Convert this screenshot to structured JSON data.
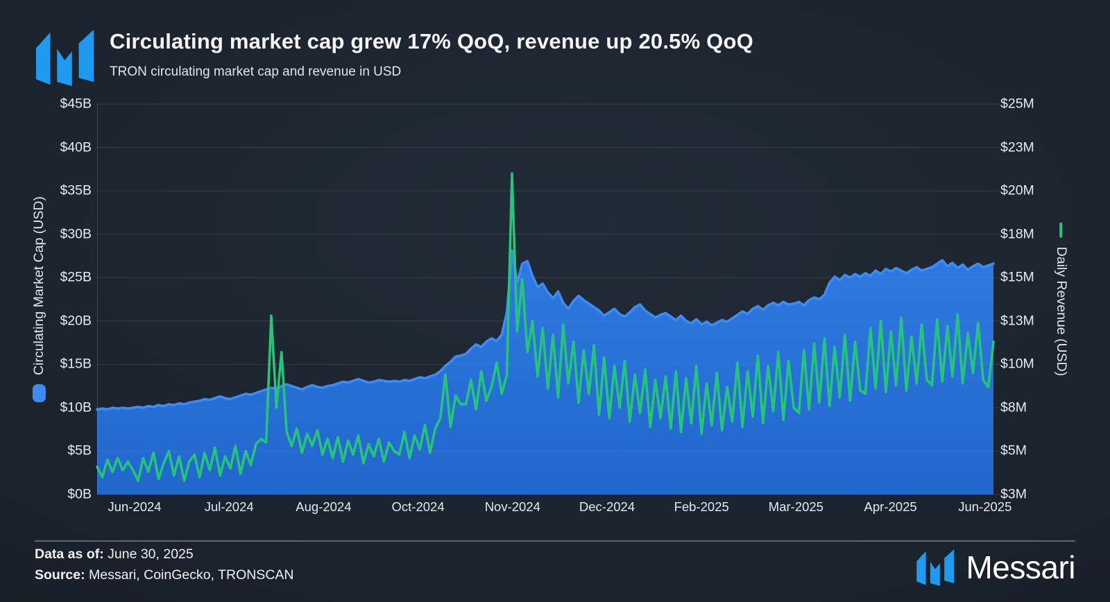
{
  "header": {
    "title": "Circulating market cap grew 17% QoQ, revenue up 20.5% QoQ",
    "subtitle": "TRON circulating market cap and revenue in USD"
  },
  "brand": {
    "logo_color": "#1E9BF0",
    "wordmark": "Messari"
  },
  "footer": {
    "data_as_of_label": "Data as of:",
    "data_as_of_value": "June 30, 2025",
    "source_label": "Source:",
    "source_value": "Messari, CoinGecko, TRONSCAN"
  },
  "chart_data": {
    "type": "area",
    "title": "Circulating market cap grew 17% QoQ, revenue up 20.5% QoQ",
    "subtitle": "TRON circulating market cap and revenue in USD",
    "grid": true,
    "legend_position": "axis-titles",
    "x_labels": [
      "Jun-2024",
      "Jul-2024",
      "Aug-2024",
      "Oct-2024",
      "Nov-2024",
      "Dec-2024",
      "Feb-2025",
      "Mar-2025",
      "Apr-2025",
      "Jun-2025"
    ],
    "x_range": "mid-May 2024 to June 30, 2025 (daily)",
    "left_axis": {
      "label": "Circulating Market Cap (USD)",
      "unit": "$B",
      "min": 0,
      "max": 45,
      "ticks": [
        "$45B",
        "$40B",
        "$35B",
        "$30B",
        "$25B",
        "$20B",
        "$15B",
        "$10B",
        "$5B",
        "$0B"
      ]
    },
    "right_axis": {
      "label": "Daily Revenue (USD)",
      "unit": "$M",
      "min": 3,
      "max": 25.5,
      "ticks": [
        "$25M",
        "$23M",
        "$20M",
        "$18M",
        "$15M",
        "$13M",
        "$10M",
        "$8M",
        "$5M",
        "$3M"
      ]
    },
    "series": [
      {
        "name": "Circulating Market Cap (USD)",
        "type": "area",
        "axis": "left",
        "fill_top": "#2E7AE2",
        "fill_bottom": "#2166CC",
        "stroke": "#3E8BF2",
        "values": [
          9.8,
          9.9,
          9.8,
          10.0,
          9.9,
          10.0,
          9.9,
          10.0,
          10.1,
          10.0,
          10.2,
          10.1,
          10.3,
          10.2,
          10.4,
          10.3,
          10.5,
          10.4,
          10.6,
          10.7,
          10.8,
          11.0,
          10.9,
          11.1,
          11.3,
          11.1,
          11.0,
          11.2,
          11.4,
          11.6,
          11.5,
          11.7,
          11.9,
          12.1,
          12.3,
          12.2,
          12.5,
          12.7,
          12.5,
          12.3,
          12.1,
          12.4,
          12.6,
          12.4,
          12.3,
          12.5,
          12.6,
          12.8,
          13.0,
          12.9,
          13.1,
          13.3,
          13.1,
          12.9,
          13.0,
          13.2,
          13.1,
          13.0,
          13.1,
          13.0,
          13.2,
          13.1,
          13.3,
          13.5,
          13.4,
          13.6,
          13.8,
          14.2,
          14.8,
          15.3,
          15.9,
          16.0,
          16.2,
          16.8,
          17.3,
          17.0,
          17.6,
          18.0,
          17.7,
          18.4,
          21.0,
          28.1,
          24.4,
          26.6,
          26.9,
          25.2,
          23.9,
          24.3,
          23.3,
          22.6,
          23.4,
          22.1,
          21.4,
          22.3,
          22.9,
          22.4,
          22.0,
          21.6,
          21.2,
          20.6,
          21.0,
          21.4,
          20.8,
          20.5,
          21.0,
          21.6,
          21.9,
          21.2,
          20.8,
          20.4,
          20.7,
          20.9,
          20.5,
          20.1,
          20.6,
          20.0,
          19.7,
          20.2,
          19.6,
          19.9,
          19.5,
          19.8,
          20.1,
          19.9,
          20.3,
          20.7,
          21.1,
          20.8,
          21.4,
          21.7,
          21.3,
          21.8,
          22.1,
          21.8,
          22.2,
          21.9,
          22.0,
          22.2,
          21.8,
          22.4,
          22.7,
          22.5,
          23.0,
          24.4,
          25.1,
          24.7,
          25.3,
          25.0,
          25.4,
          25.1,
          25.5,
          25.2,
          25.8,
          25.4,
          26.0,
          25.7,
          26.1,
          25.8,
          25.5,
          25.9,
          26.2,
          25.8,
          26.0,
          26.2,
          26.6,
          27.0,
          26.3,
          26.7,
          26.1,
          26.5,
          25.9,
          26.3,
          26.6,
          26.2,
          26.4,
          26.6
        ]
      },
      {
        "name": "Daily Revenue (USD)",
        "type": "line",
        "axis": "right",
        "stroke": "#25C479",
        "values": [
          4.6,
          4.0,
          5.0,
          4.3,
          5.1,
          4.4,
          4.9,
          4.4,
          3.8,
          5.1,
          4.3,
          5.4,
          3.9,
          4.8,
          5.5,
          4.1,
          5.2,
          3.8,
          4.9,
          5.3,
          4.0,
          5.4,
          4.4,
          5.7,
          4.1,
          5.2,
          4.5,
          5.8,
          4.2,
          5.5,
          4.7,
          5.9,
          6.2,
          6.0,
          13.3,
          8.0,
          11.2,
          6.6,
          5.8,
          6.8,
          5.4,
          6.5,
          5.8,
          6.7,
          5.3,
          6.2,
          5.1,
          6.3,
          4.9,
          6.1,
          5.3,
          6.4,
          4.8,
          5.9,
          5.2,
          6.2,
          4.9,
          6.0,
          5.5,
          5.3,
          6.6,
          5.1,
          6.4,
          5.6,
          7.0,
          5.4,
          6.8,
          7.4,
          9.9,
          6.9,
          8.7,
          8.2,
          8.2,
          9.6,
          7.9,
          10.1,
          8.4,
          9.2,
          10.6,
          8.8,
          9.9,
          21.5,
          12.4,
          15.4,
          11.2,
          13.0,
          9.8,
          12.6,
          9.1,
          12.2,
          8.6,
          12.8,
          9.4,
          11.8,
          8.3,
          11.3,
          8.8,
          11.6,
          7.6,
          10.9,
          7.4,
          10.4,
          8.0,
          10.7,
          7.2,
          9.9,
          7.7,
          10.2,
          6.9,
          9.6,
          7.4,
          9.8,
          6.8,
          10.1,
          6.6,
          9.7,
          7.1,
          10.4,
          6.5,
          9.4,
          7.0,
          10.0,
          6.7,
          9.2,
          7.2,
          10.6,
          6.9,
          10.1,
          7.5,
          11.0,
          7.1,
          10.4,
          7.8,
          11.2,
          7.3,
          10.7,
          8.0,
          7.7,
          11.3,
          7.9,
          11.7,
          8.3,
          12.0,
          8.1,
          11.5,
          8.6,
          12.2,
          8.4,
          11.8,
          9.0,
          8.8,
          12.6,
          9.1,
          13.0,
          8.9,
          12.4,
          9.3,
          13.2,
          9.0,
          12.1,
          9.4,
          12.8,
          9.6,
          9.3,
          13.1,
          9.5,
          12.7,
          9.8,
          13.4,
          9.4,
          12.3,
          10.0,
          12.9,
          9.6,
          9.2,
          11.8
        ]
      }
    ]
  }
}
